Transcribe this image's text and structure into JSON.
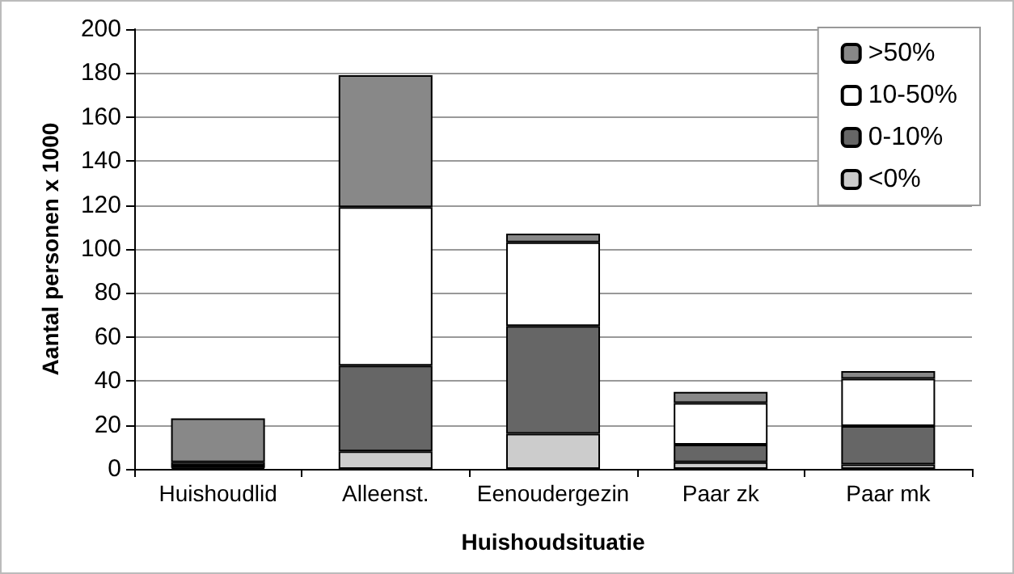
{
  "chart_data": {
    "type": "bar",
    "stacked": true,
    "xlabel": "Huishoudsituatie",
    "ylabel": "Aantal personen x 1000",
    "categories": [
      "Huishoudlid",
      "Alleenst.",
      "Eenoudergezin",
      "Paar zk",
      "Paar mk"
    ],
    "series": [
      {
        "name": "<0%",
        "color": "#cccccc",
        "values": [
          0.5,
          8,
          16,
          3,
          2
        ]
      },
      {
        "name": "0-10%",
        "color": "#666666",
        "values": [
          1,
          39,
          49,
          8,
          17.5
        ]
      },
      {
        "name": "10-50%",
        "color": "#ffffff",
        "values": [
          1.5,
          72,
          38,
          19,
          21.5
        ]
      },
      {
        "name": ">50%",
        "color": "#888888",
        "values": [
          20,
          60,
          4,
          5,
          3.5
        ]
      }
    ],
    "ylim": [
      0,
      200
    ],
    "yticks": [
      0,
      20,
      40,
      60,
      80,
      100,
      120,
      140,
      160,
      180,
      200
    ],
    "grid": "y",
    "legend": "top right"
  }
}
